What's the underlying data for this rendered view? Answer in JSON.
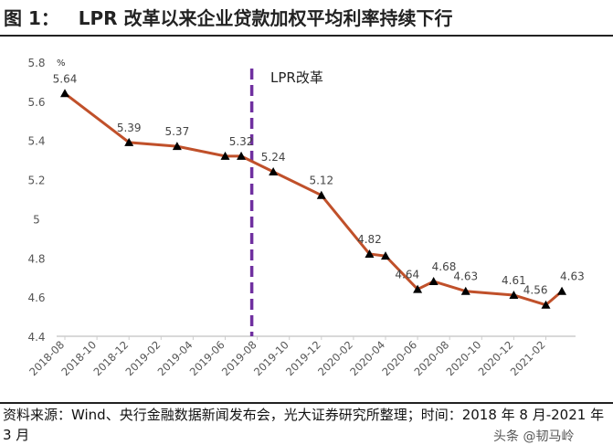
{
  "title": "图 1：   LPR 改革以来企业贷款加权平均利率持续下行",
  "source": "资料来源：Wind、央行金融数据新闻发布会，光大证券研究所整理；时间：2018 年 8 月-2021 年 3 月",
  "watermark": "头条 @韧马岭",
  "chart_data": {
    "type": "line",
    "ylabel": "%",
    "ylim": [
      4.4,
      5.8
    ],
    "yticks": [
      "4.4",
      "4.6",
      "4.8",
      "5",
      "5.2",
      "5.4",
      "5.6",
      "5.8"
    ],
    "xticks": [
      "2018-08",
      "2018-10",
      "2018-12",
      "2019-02",
      "2019-04",
      "2019-06",
      "2019-08",
      "2019-10",
      "2019-12",
      "2020-02",
      "2020-04",
      "2020-06",
      "2020-08",
      "2020-10",
      "2020-12",
      "2021-02"
    ],
    "x": [
      "2018-08",
      "2018-12",
      "2019-03",
      "2019-06",
      "2019-07",
      "2019-09",
      "2019-12",
      "2020-03",
      "2020-04",
      "2020-06",
      "2020-07",
      "2020-09",
      "2020-12",
      "2021-02",
      "2021-03"
    ],
    "values": [
      5.64,
      5.39,
      5.37,
      5.32,
      5.32,
      5.24,
      5.12,
      4.82,
      4.81,
      4.64,
      4.68,
      4.63,
      4.61,
      4.56,
      4.63
    ],
    "labels": [
      "5.64",
      "5.39",
      "5.37",
      null,
      "5.32",
      "5.24",
      "5.12",
      "4.82",
      null,
      "4.64",
      "4.68",
      "4.63",
      "4.61",
      "4.56",
      "4.63"
    ],
    "line_color": "#c0502a",
    "marker": "triangle",
    "annotation": {
      "text": "LPR改革",
      "x": "2019-08",
      "color": "#7030a0"
    },
    "grid": false
  }
}
